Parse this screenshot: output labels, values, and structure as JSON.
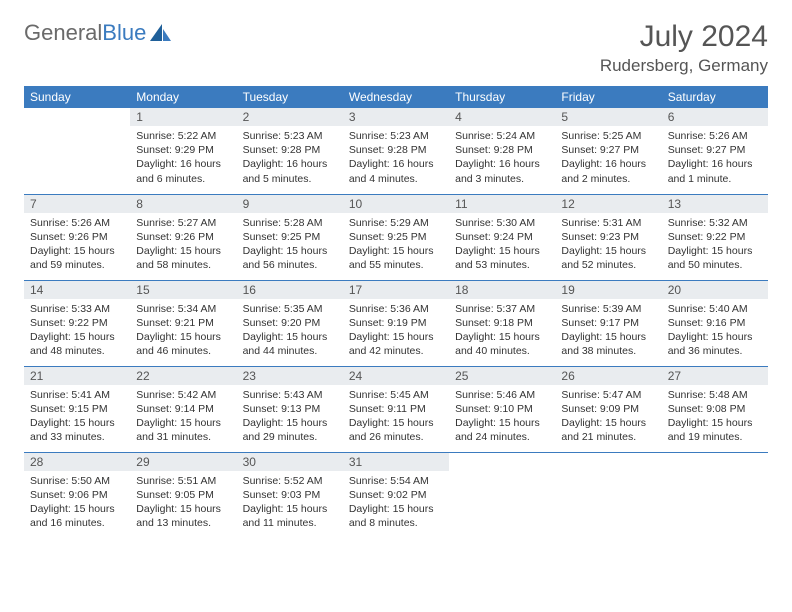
{
  "brand": {
    "part1": "General",
    "part2": "Blue"
  },
  "title": "July 2024",
  "location": "Rudersberg, Germany",
  "header_bg": "#3b7bbf",
  "daynum_bg": "#e9ecef",
  "rule_color": "#3b7bbf",
  "dow": [
    "Sunday",
    "Monday",
    "Tuesday",
    "Wednesday",
    "Thursday",
    "Friday",
    "Saturday"
  ],
  "weeks": [
    [
      {
        "n": "",
        "sr": "",
        "ss": "",
        "dl": ""
      },
      {
        "n": "1",
        "sr": "Sunrise: 5:22 AM",
        "ss": "Sunset: 9:29 PM",
        "dl": "Daylight: 16 hours and 6 minutes."
      },
      {
        "n": "2",
        "sr": "Sunrise: 5:23 AM",
        "ss": "Sunset: 9:28 PM",
        "dl": "Daylight: 16 hours and 5 minutes."
      },
      {
        "n": "3",
        "sr": "Sunrise: 5:23 AM",
        "ss": "Sunset: 9:28 PM",
        "dl": "Daylight: 16 hours and 4 minutes."
      },
      {
        "n": "4",
        "sr": "Sunrise: 5:24 AM",
        "ss": "Sunset: 9:28 PM",
        "dl": "Daylight: 16 hours and 3 minutes."
      },
      {
        "n": "5",
        "sr": "Sunrise: 5:25 AM",
        "ss": "Sunset: 9:27 PM",
        "dl": "Daylight: 16 hours and 2 minutes."
      },
      {
        "n": "6",
        "sr": "Sunrise: 5:26 AM",
        "ss": "Sunset: 9:27 PM",
        "dl": "Daylight: 16 hours and 1 minute."
      }
    ],
    [
      {
        "n": "7",
        "sr": "Sunrise: 5:26 AM",
        "ss": "Sunset: 9:26 PM",
        "dl": "Daylight: 15 hours and 59 minutes."
      },
      {
        "n": "8",
        "sr": "Sunrise: 5:27 AM",
        "ss": "Sunset: 9:26 PM",
        "dl": "Daylight: 15 hours and 58 minutes."
      },
      {
        "n": "9",
        "sr": "Sunrise: 5:28 AM",
        "ss": "Sunset: 9:25 PM",
        "dl": "Daylight: 15 hours and 56 minutes."
      },
      {
        "n": "10",
        "sr": "Sunrise: 5:29 AM",
        "ss": "Sunset: 9:25 PM",
        "dl": "Daylight: 15 hours and 55 minutes."
      },
      {
        "n": "11",
        "sr": "Sunrise: 5:30 AM",
        "ss": "Sunset: 9:24 PM",
        "dl": "Daylight: 15 hours and 53 minutes."
      },
      {
        "n": "12",
        "sr": "Sunrise: 5:31 AM",
        "ss": "Sunset: 9:23 PM",
        "dl": "Daylight: 15 hours and 52 minutes."
      },
      {
        "n": "13",
        "sr": "Sunrise: 5:32 AM",
        "ss": "Sunset: 9:22 PM",
        "dl": "Daylight: 15 hours and 50 minutes."
      }
    ],
    [
      {
        "n": "14",
        "sr": "Sunrise: 5:33 AM",
        "ss": "Sunset: 9:22 PM",
        "dl": "Daylight: 15 hours and 48 minutes."
      },
      {
        "n": "15",
        "sr": "Sunrise: 5:34 AM",
        "ss": "Sunset: 9:21 PM",
        "dl": "Daylight: 15 hours and 46 minutes."
      },
      {
        "n": "16",
        "sr": "Sunrise: 5:35 AM",
        "ss": "Sunset: 9:20 PM",
        "dl": "Daylight: 15 hours and 44 minutes."
      },
      {
        "n": "17",
        "sr": "Sunrise: 5:36 AM",
        "ss": "Sunset: 9:19 PM",
        "dl": "Daylight: 15 hours and 42 minutes."
      },
      {
        "n": "18",
        "sr": "Sunrise: 5:37 AM",
        "ss": "Sunset: 9:18 PM",
        "dl": "Daylight: 15 hours and 40 minutes."
      },
      {
        "n": "19",
        "sr": "Sunrise: 5:39 AM",
        "ss": "Sunset: 9:17 PM",
        "dl": "Daylight: 15 hours and 38 minutes."
      },
      {
        "n": "20",
        "sr": "Sunrise: 5:40 AM",
        "ss": "Sunset: 9:16 PM",
        "dl": "Daylight: 15 hours and 36 minutes."
      }
    ],
    [
      {
        "n": "21",
        "sr": "Sunrise: 5:41 AM",
        "ss": "Sunset: 9:15 PM",
        "dl": "Daylight: 15 hours and 33 minutes."
      },
      {
        "n": "22",
        "sr": "Sunrise: 5:42 AM",
        "ss": "Sunset: 9:14 PM",
        "dl": "Daylight: 15 hours and 31 minutes."
      },
      {
        "n": "23",
        "sr": "Sunrise: 5:43 AM",
        "ss": "Sunset: 9:13 PM",
        "dl": "Daylight: 15 hours and 29 minutes."
      },
      {
        "n": "24",
        "sr": "Sunrise: 5:45 AM",
        "ss": "Sunset: 9:11 PM",
        "dl": "Daylight: 15 hours and 26 minutes."
      },
      {
        "n": "25",
        "sr": "Sunrise: 5:46 AM",
        "ss": "Sunset: 9:10 PM",
        "dl": "Daylight: 15 hours and 24 minutes."
      },
      {
        "n": "26",
        "sr": "Sunrise: 5:47 AM",
        "ss": "Sunset: 9:09 PM",
        "dl": "Daylight: 15 hours and 21 minutes."
      },
      {
        "n": "27",
        "sr": "Sunrise: 5:48 AM",
        "ss": "Sunset: 9:08 PM",
        "dl": "Daylight: 15 hours and 19 minutes."
      }
    ],
    [
      {
        "n": "28",
        "sr": "Sunrise: 5:50 AM",
        "ss": "Sunset: 9:06 PM",
        "dl": "Daylight: 15 hours and 16 minutes."
      },
      {
        "n": "29",
        "sr": "Sunrise: 5:51 AM",
        "ss": "Sunset: 9:05 PM",
        "dl": "Daylight: 15 hours and 13 minutes."
      },
      {
        "n": "30",
        "sr": "Sunrise: 5:52 AM",
        "ss": "Sunset: 9:03 PM",
        "dl": "Daylight: 15 hours and 11 minutes."
      },
      {
        "n": "31",
        "sr": "Sunrise: 5:54 AM",
        "ss": "Sunset: 9:02 PM",
        "dl": "Daylight: 15 hours and 8 minutes."
      },
      {
        "n": "",
        "sr": "",
        "ss": "",
        "dl": ""
      },
      {
        "n": "",
        "sr": "",
        "ss": "",
        "dl": ""
      },
      {
        "n": "",
        "sr": "",
        "ss": "",
        "dl": ""
      }
    ]
  ]
}
